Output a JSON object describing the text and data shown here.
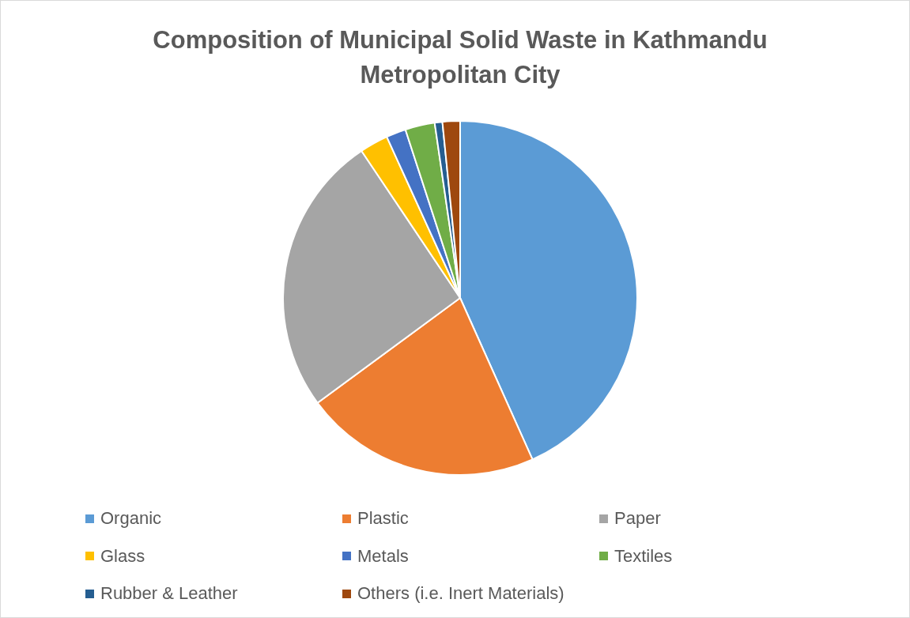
{
  "chart_data": {
    "type": "pie",
    "title": "Composition of Municipal Solid Waste in Kathmandu Metropolitan City",
    "categories": [
      "Organic",
      "Plastic",
      "Paper",
      "Glass",
      "Metals",
      "Textiles",
      "Rubber & Leather",
      "Others (i.e. Inert Materials)"
    ],
    "values": [
      43.3,
      21.6,
      25.7,
      2.6,
      1.8,
      2.7,
      0.7,
      1.6
    ],
    "colors": [
      "#5b9bd5",
      "#ed7d31",
      "#a5a5a5",
      "#ffc000",
      "#4472c4",
      "#70ad47",
      "#255e91",
      "#9e480e"
    ],
    "legend": "bottom"
  }
}
